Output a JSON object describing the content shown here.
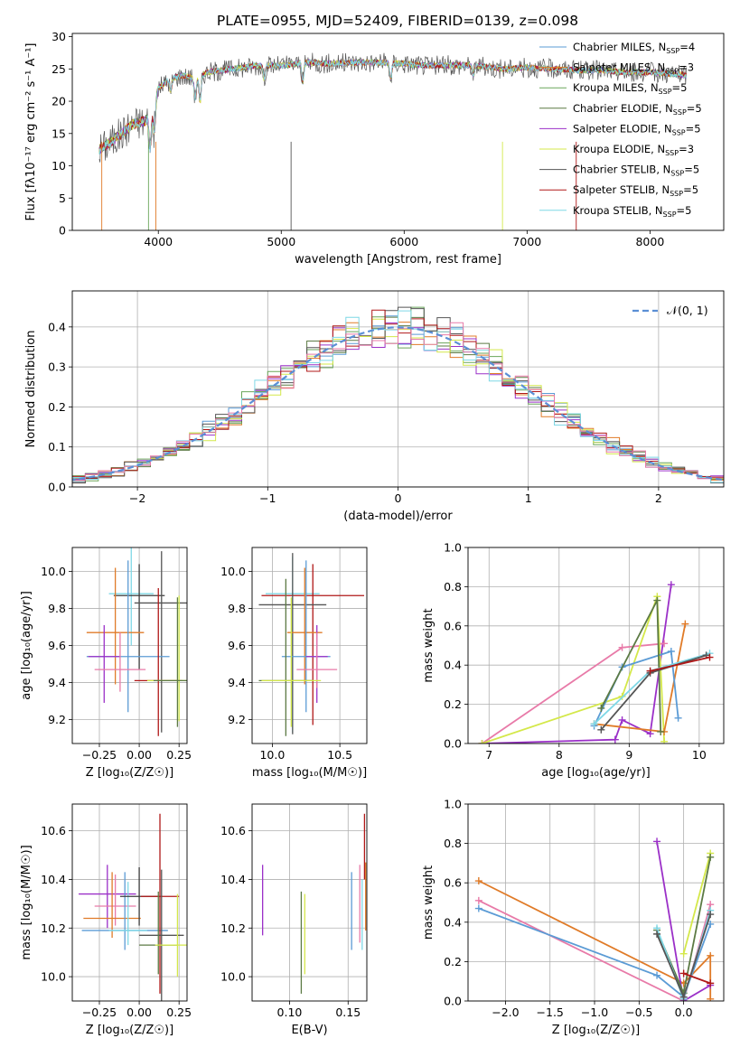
{
  "title": "PLATE=0955, MJD=52409, FIBERID=0139, z=0.098",
  "colors": [
    "#5b9bd5",
    "#e07b28",
    "#6aa55a",
    "#5c7a44",
    "#9b30c8",
    "#d4e84a",
    "#555555",
    "#b01818",
    "#7fd8e6",
    "#e87aa8",
    "#3c3c3c"
  ],
  "chart_data": [
    {
      "id": "spectrum",
      "type": "line",
      "title": "PLATE=0955, MJD=52409, FIBERID=0139, z=0.098",
      "xlabel": "wavelength [Angstrom, rest frame]",
      "ylabel": "Flux [fλ10⁻¹⁷ erg cm⁻² s⁻¹ A⁻¹]",
      "xlim": [
        3300,
        8600
      ],
      "ylim": [
        0,
        30.5
      ],
      "xticks": [
        "4000",
        "5000",
        "6000",
        "7000",
        "8000"
      ],
      "yticks": [
        "0",
        "5",
        "10",
        "15",
        "20",
        "25",
        "30"
      ],
      "grid": false,
      "legend_position": "right",
      "series": [
        {
          "name": "Chabrier MILES, NSSP=4",
          "name_main": "Chabrier MILES, N",
          "name_sub": "SSP",
          "name_tail": "=4"
        },
        {
          "name": "Salpeter MILES, NSSP=3",
          "name_main": "Salpeter MILES, N",
          "name_sub": "SSP",
          "name_tail": "=3"
        },
        {
          "name": "Kroupa MILES, NSSP=5",
          "name_main": "Kroupa MILES, N",
          "name_sub": "SSP",
          "name_tail": "=5"
        },
        {
          "name": "Chabrier ELODIE, NSSP=5",
          "name_main": "Chabrier ELODIE, N",
          "name_sub": "SSP",
          "name_tail": "=5"
        },
        {
          "name": "Salpeter ELODIE, NSSP=5",
          "name_main": "Salpeter ELODIE, N",
          "name_sub": "SSP",
          "name_tail": "=5"
        },
        {
          "name": "Kroupa ELODIE, NSSP=3",
          "name_main": "Kroupa ELODIE, N",
          "name_sub": "SSP",
          "name_tail": "=3"
        },
        {
          "name": "Chabrier STELIB, NSSP=5",
          "name_main": "Chabrier STELIB, N",
          "name_sub": "SSP",
          "name_tail": "=5"
        },
        {
          "name": "Salpeter STELIB, NSSP=5",
          "name_main": "Salpeter STELIB, N",
          "name_sub": "SSP",
          "name_tail": "=5"
        },
        {
          "name": "Kroupa STELIB, NSSP=5",
          "name_main": "Kroupa STELIB, N",
          "name_sub": "SSP",
          "name_tail": "=5"
        }
      ],
      "continuum": {
        "x": [
          3520,
          3600,
          3700,
          3800,
          3900,
          3950,
          4000,
          4100,
          4200,
          4300,
          4400,
          4600,
          4800,
          5000,
          5200,
          5400,
          5600,
          5800,
          6000,
          6200,
          6400,
          6600,
          6800,
          7000,
          7200,
          7400,
          7600,
          7800,
          8000,
          8200,
          8300
        ],
        "y": [
          12.5,
          13.5,
          15,
          16.5,
          17,
          18,
          22,
          23.5,
          24,
          23.5,
          24.5,
          25,
          25.5,
          25.5,
          26,
          25.8,
          26,
          26,
          25.8,
          25.5,
          25.6,
          25.5,
          25,
          25.2,
          25,
          24.8,
          24.8,
          24.5,
          24.5,
          24.2,
          24
        ]
      }
    },
    {
      "id": "residuals",
      "type": "histogram",
      "xlabel": "(data-model)/error",
      "ylabel": "Normed distribution",
      "xlim": [
        -2.5,
        2.5
      ],
      "ylim": [
        0,
        0.49
      ],
      "xticks": [
        "−2",
        "−1",
        "0",
        "1",
        "2"
      ],
      "yticks": [
        "0.0",
        "0.1",
        "0.2",
        "0.3",
        "0.4"
      ],
      "grid": true,
      "legend": "𝒩(0, 1)",
      "bin_width": 0.1
    },
    {
      "id": "age-vs-Z",
      "type": "scatter",
      "xlabel": "Z [log₁₀(Z/Z☉)]",
      "ylabel": "age  [log₁₀(age/yr)]",
      "xlim": [
        -0.42,
        0.3
      ],
      "ylim": [
        9.07,
        10.13
      ],
      "xticks": [
        "−0.25",
        "0.00",
        "0.25"
      ],
      "yticks": [
        "9.2",
        "9.4",
        "9.6",
        "9.8",
        "10.0"
      ],
      "points": [
        {
          "x": -0.05,
          "y": 9.88,
          "xerr": 0.14,
          "yerr": [
            0.28,
            0.25
          ],
          "c": 8
        },
        {
          "x": 0.0,
          "y": 9.87,
          "xerr": 0.16,
          "yerr": [
            0.4,
            0.17
          ],
          "c": 10
        },
        {
          "x": 0.14,
          "y": 9.83,
          "xerr": 0.17,
          "yerr": [
            0.7,
            0.28
          ],
          "c": 6
        },
        {
          "x": -0.15,
          "y": 9.67,
          "xerr": 0.18,
          "yerr": [
            0.28,
            0.35
          ],
          "c": 1
        },
        {
          "x": -0.07,
          "y": 9.54,
          "xerr": 0.26,
          "yerr": [
            0.3,
            0.52
          ],
          "c": 0
        },
        {
          "x": -0.22,
          "y": 9.54,
          "xerr": 0.1,
          "yerr": [
            0.25,
            0.17
          ],
          "c": 4
        },
        {
          "x": -0.12,
          "y": 9.47,
          "xerr": 0.16,
          "yerr": [
            0.12,
            0.2
          ],
          "c": 9
        },
        {
          "x": 0.12,
          "y": 9.41,
          "xerr": 0.15,
          "yerr": [
            0.3,
            0.5
          ],
          "c": 7
        },
        {
          "x": 0.25,
          "y": 9.41,
          "xerr": 0.2,
          "yerr": [
            0.22,
            0.46
          ],
          "c": 5
        },
        {
          "x": 0.24,
          "y": 9.41,
          "xerr": 0.15,
          "yerr": [
            0.25,
            0.45
          ],
          "c": 3
        }
      ]
    },
    {
      "id": "age-vs-mass",
      "type": "scatter",
      "xlabel": "mass [log₁₀(M/M☉)]",
      "ylabel": "",
      "xlim": [
        9.85,
        10.7
      ],
      "ylim": [
        9.07,
        10.13
      ],
      "xticks": [
        "10.0",
        "10.5"
      ],
      "yticks": [
        "9.2",
        "9.4",
        "9.6",
        "9.8",
        "10.0"
      ],
      "points": [
        {
          "x": 10.15,
          "y": 9.88,
          "xerr": 0.2,
          "yerr": [
            0.75,
            0.2
          ],
          "c": 8
        },
        {
          "x": 10.3,
          "y": 9.87,
          "xerr": 0.38,
          "yerr": [
            0.7,
            0.17
          ],
          "c": 7
        },
        {
          "x": 10.15,
          "y": 9.82,
          "xerr": 0.25,
          "yerr": [
            0.7,
            0.28
          ],
          "c": 6
        },
        {
          "x": 10.24,
          "y": 9.67,
          "xerr": 0.13,
          "yerr": [
            0.28,
            0.35
          ],
          "c": 1
        },
        {
          "x": 10.25,
          "y": 9.54,
          "xerr": 0.18,
          "yerr": [
            0.3,
            0.52
          ],
          "c": 0
        },
        {
          "x": 10.33,
          "y": 9.54,
          "xerr": 0.08,
          "yerr": [
            0.25,
            0.17
          ],
          "c": 4
        },
        {
          "x": 10.33,
          "y": 9.47,
          "xerr": 0.15,
          "yerr": [
            0.1,
            0.2
          ],
          "c": 9
        },
        {
          "x": 10.1,
          "y": 9.41,
          "xerr": 0.2,
          "yerr": [
            0.3,
            0.55
          ],
          "c": 3
        },
        {
          "x": 10.14,
          "y": 9.41,
          "xerr": 0.22,
          "yerr": [
            0.25,
            0.45
          ],
          "c": 5
        }
      ]
    },
    {
      "id": "weight-vs-age",
      "type": "line",
      "xlabel": "age  [log₁₀(age/yr)]",
      "ylabel": "mass weight",
      "xlim": [
        6.7,
        10.35
      ],
      "ylim": [
        0,
        1
      ],
      "xticks": [
        "7",
        "8",
        "9",
        "10"
      ],
      "yticks": [
        "0.0",
        "0.2",
        "0.4",
        "0.6",
        "0.8",
        "1.0"
      ],
      "series": [
        {
          "c": 4,
          "x": [
            6.9,
            8.8,
            8.9,
            9.3,
            9.6
          ],
          "y": [
            0.0,
            0.02,
            0.12,
            0.05,
            0.81
          ]
        },
        {
          "c": 9,
          "x": [
            6.9,
            8.9,
            9.5
          ],
          "y": [
            0.0,
            0.49,
            0.51
          ]
        },
        {
          "c": 5,
          "x": [
            6.9,
            8.9,
            9.4,
            9.5
          ],
          "y": [
            0.0,
            0.24,
            0.75,
            0.01
          ]
        },
        {
          "c": 1,
          "x": [
            8.5,
            9.5,
            9.8
          ],
          "y": [
            0.1,
            0.06,
            0.61
          ]
        },
        {
          "c": 0,
          "x": [
            8.5,
            8.9,
            9.6,
            9.7
          ],
          "y": [
            0.09,
            0.39,
            0.47,
            0.13
          ]
        },
        {
          "c": 3,
          "x": [
            8.6,
            9.4,
            9.45
          ],
          "y": [
            0.18,
            0.73,
            0.06
          ]
        },
        {
          "c": 8,
          "x": [
            8.5,
            9.3,
            10.15
          ],
          "y": [
            0.1,
            0.37,
            0.46
          ]
        },
        {
          "c": 6,
          "x": [
            8.6,
            9.3,
            10.1
          ],
          "y": [
            0.07,
            0.36,
            0.45
          ]
        },
        {
          "c": 7,
          "x": [
            9.3,
            10.15
          ],
          "y": [
            0.37,
            0.44
          ]
        }
      ]
    },
    {
      "id": "mass-vs-Z",
      "type": "scatter",
      "xlabel": "Z [log₁₀(Z/Z☉)]",
      "ylabel": "mass [log₁₀(M/M☉)]",
      "xlim": [
        -0.42,
        0.3
      ],
      "ylim": [
        9.9,
        10.71
      ],
      "xticks": [
        "−0.25",
        "0.00",
        "0.25"
      ],
      "yticks": [
        "10.0",
        "10.2",
        "10.4",
        "10.6"
      ],
      "points": [
        {
          "x": -0.2,
          "y": 10.34,
          "xerr": 0.18,
          "yerr": [
            0.14,
            0.12
          ],
          "c": 4
        },
        {
          "x": -0.15,
          "y": 10.29,
          "xerr": 0.13,
          "yerr": [
            0.08,
            0.13
          ],
          "c": 9
        },
        {
          "x": -0.17,
          "y": 10.24,
          "xerr": 0.18,
          "yerr": [
            0.08,
            0.19
          ],
          "c": 1
        },
        {
          "x": -0.09,
          "y": 10.19,
          "xerr": 0.27,
          "yerr": [
            0.08,
            0.24
          ],
          "c": 0
        },
        {
          "x": -0.07,
          "y": 10.19,
          "xerr": 0.12,
          "yerr": [
            0.06,
            0.2
          ],
          "c": 8
        },
        {
          "x": 0.0,
          "y": 10.33,
          "xerr": 0.12,
          "yerr": [
            0.12,
            0.12
          ],
          "c": 10
        },
        {
          "x": 0.13,
          "y": 10.33,
          "xerr": 0.12,
          "yerr": [
            0.4,
            0.34
          ],
          "c": 7
        },
        {
          "x": 0.14,
          "y": 10.17,
          "xerr": 0.14,
          "yerr": [
            0.27,
            0.27
          ],
          "c": 6
        },
        {
          "x": 0.12,
          "y": 10.13,
          "xerr": 0.12,
          "yerr": [
            0.12,
            0.22
          ],
          "c": 3
        },
        {
          "x": 0.24,
          "y": 10.13,
          "xerr": 0.14,
          "yerr": [
            0.13,
            0.21
          ],
          "c": 5
        }
      ]
    },
    {
      "id": "mass-vs-ebv",
      "type": "scatter",
      "xlabel": "E(B-V)",
      "ylabel": "",
      "xlim": [
        0.068,
        0.166
      ],
      "ylim": [
        9.9,
        10.71
      ],
      "xticks": [
        "0.10",
        "0.15"
      ],
      "yticks": [
        "10.0",
        "10.2",
        "10.4",
        "10.6"
      ],
      "points": [
        {
          "x": 0.077,
          "y": 10.31,
          "yerr": [
            0.14,
            0.15
          ],
          "c": 4
        },
        {
          "x": 0.11,
          "y": 10.14,
          "yerr": [
            0.21,
            0.21
          ],
          "c": 3
        },
        {
          "x": 0.113,
          "y": 10.18,
          "yerr": [
            0.17,
            0.16
          ],
          "c": 5
        },
        {
          "x": 0.153,
          "y": 10.27,
          "yerr": [
            0.16,
            0.16
          ],
          "c": 0
        },
        {
          "x": 0.16,
          "y": 10.3,
          "yerr": [
            0.16,
            0.16
          ],
          "c": 9
        },
        {
          "x": 0.162,
          "y": 10.25,
          "yerr": [
            0.14,
            0.15
          ],
          "c": 8
        },
        {
          "x": 0.164,
          "y": 10.52,
          "yerr": [
            0.12,
            0.15
          ],
          "c": 7
        },
        {
          "x": 0.165,
          "y": 10.33,
          "yerr": [
            0.14,
            0.14
          ],
          "c": 1
        }
      ]
    },
    {
      "id": "weight-vs-Z",
      "type": "line",
      "xlabel": "Z [log₁₀(Z/Z☉)]",
      "ylabel": "mass weight",
      "xlim": [
        -2.42,
        0.45
      ],
      "ylim": [
        0,
        1
      ],
      "xticks": [
        "−2.0",
        "−1.5",
        "−1.0",
        "−0.5",
        "0.0"
      ],
      "yticks": [
        "0.0",
        "0.2",
        "0.4",
        "0.6",
        "0.8",
        "1.0"
      ],
      "series": [
        {
          "c": 1,
          "x": [
            -2.3,
            0.0,
            0.3,
            0.3
          ],
          "y": [
            0.61,
            0.09,
            0.23,
            0.01
          ]
        },
        {
          "c": 9,
          "x": [
            -2.3,
            0.0,
            0.3
          ],
          "y": [
            0.51,
            0.0,
            0.49
          ]
        },
        {
          "c": 0,
          "x": [
            -2.3,
            -0.3,
            0.0,
            0.3
          ],
          "y": [
            0.47,
            0.13,
            0.02,
            0.39
          ]
        },
        {
          "c": 4,
          "x": [
            -0.3,
            0.0,
            0.3
          ],
          "y": [
            0.81,
            0.0,
            0.08
          ]
        },
        {
          "c": 5,
          "x": [
            0.0,
            0.3
          ],
          "y": [
            0.24,
            0.75
          ]
        },
        {
          "c": 3,
          "x": [
            -0.3,
            0.0,
            0.3
          ],
          "y": [
            0.36,
            0.04,
            0.73
          ]
        },
        {
          "c": 8,
          "x": [
            -0.3,
            0.0,
            0.3
          ],
          "y": [
            0.37,
            0.01,
            0.46
          ]
        },
        {
          "c": 6,
          "x": [
            -0.3,
            0.0,
            0.3
          ],
          "y": [
            0.34,
            0.02,
            0.44
          ]
        },
        {
          "c": 7,
          "x": [
            0.0,
            0.3
          ],
          "y": [
            0.14,
            0.09
          ]
        }
      ]
    }
  ]
}
